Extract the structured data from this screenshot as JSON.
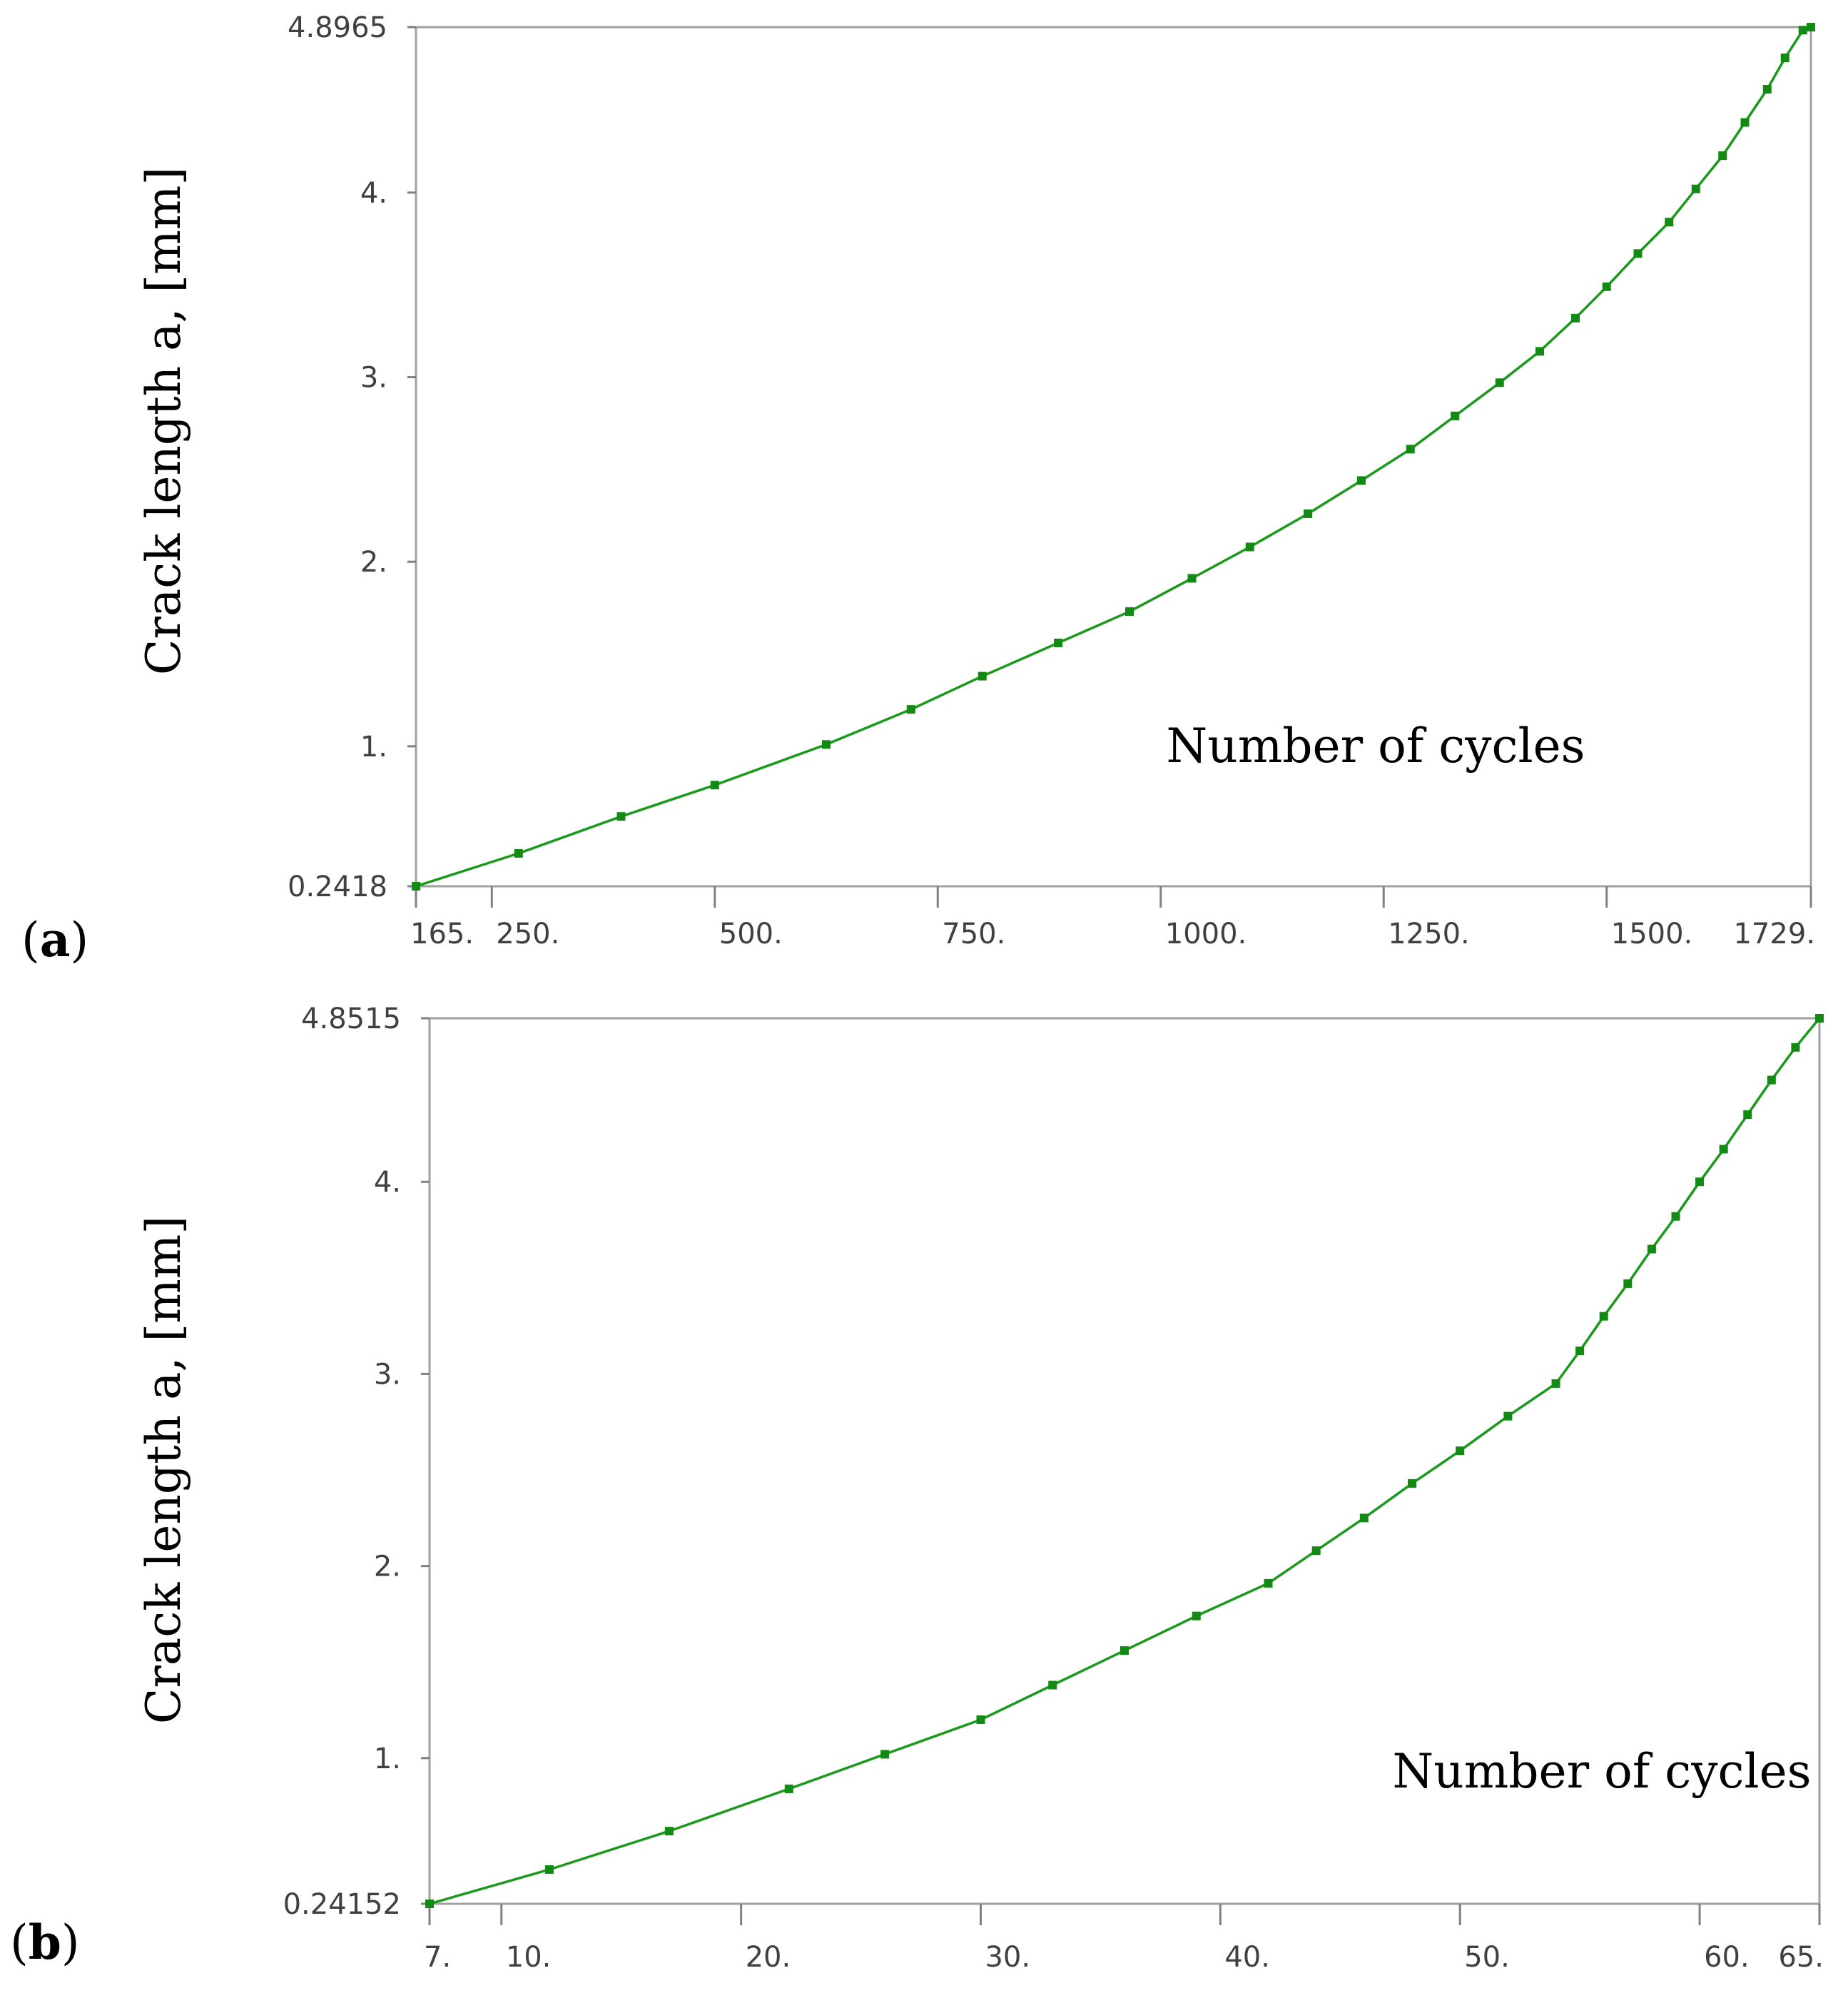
{
  "chart_data": [
    {
      "type": "line",
      "panel": "a",
      "xlabel": "Number of cycles",
      "ylabel": "Crack length a, [mm]",
      "xlim": [
        165,
        1729
      ],
      "ylim": [
        0.2418,
        4.8965
      ],
      "x_ticks": [
        165,
        250,
        500,
        750,
        1000,
        1250,
        1500,
        1729
      ],
      "x_tick_labels": [
        "165.",
        "250.",
        "500.",
        "750.",
        "1000.",
        "1250.",
        "1500.",
        "1729."
      ],
      "y_ticks": [
        0.2418,
        1,
        2,
        3,
        4,
        4.8965
      ],
      "y_tick_labels": [
        "0.2418",
        "1.",
        "2.",
        "3.",
        "4.",
        "4.8965"
      ],
      "color": "#1a9a1a",
      "series": [
        {
          "name": "Crack length",
          "x": [
            165,
            280,
            395,
            500,
            625,
            720,
            800,
            885,
            965,
            1035,
            1100,
            1165,
            1225,
            1280,
            1330,
            1380,
            1425,
            1465,
            1500,
            1535,
            1570,
            1600,
            1630,
            1655,
            1680,
            1700,
            1720,
            1729
          ],
          "y": [
            0.2418,
            0.42,
            0.62,
            0.79,
            1.01,
            1.2,
            1.38,
            1.56,
            1.73,
            1.91,
            2.08,
            2.26,
            2.44,
            2.61,
            2.79,
            2.97,
            3.14,
            3.32,
            3.49,
            3.67,
            3.84,
            4.02,
            4.2,
            4.38,
            4.56,
            4.73,
            4.88,
            4.8965
          ]
        }
      ]
    },
    {
      "type": "line",
      "panel": "b",
      "xlabel": "Number of cycles",
      "ylabel": "Crack length a, [mm]",
      "xlim": [
        7,
        65
      ],
      "ylim": [
        0.24152,
        4.8515
      ],
      "x_ticks": [
        7,
        10,
        20,
        30,
        40,
        50,
        60,
        65
      ],
      "x_tick_labels": [
        "7.",
        "10.",
        "20.",
        "30.",
        "40.",
        "50.",
        "60.",
        "65."
      ],
      "y_ticks": [
        0.24152,
        1,
        2,
        3,
        4,
        4.8515
      ],
      "y_tick_labels": [
        "0.24152",
        "1.",
        "2.",
        "3.",
        "4.",
        "4.8515"
      ],
      "color": "#1a9a1a",
      "series": [
        {
          "name": "Crack length",
          "x": [
            7,
            12,
            17,
            22,
            26,
            30,
            33,
            36,
            39,
            42,
            44,
            46,
            48,
            50,
            52,
            54,
            55,
            56,
            57,
            58,
            59,
            60,
            61,
            62,
            63,
            64,
            65
          ],
          "y": [
            0.24152,
            0.42,
            0.62,
            0.84,
            1.02,
            1.2,
            1.38,
            1.56,
            1.74,
            1.91,
            2.08,
            2.25,
            2.43,
            2.6,
            2.78,
            2.95,
            3.12,
            3.3,
            3.47,
            3.65,
            3.82,
            4.0,
            4.17,
            4.35,
            4.53,
            4.7,
            4.8515
          ]
        }
      ]
    }
  ],
  "panel_labels": {
    "a": {
      "open": "(",
      "letter": "a",
      "close": ")"
    },
    "b": {
      "open": "(",
      "letter": "b",
      "close": ")"
    }
  }
}
